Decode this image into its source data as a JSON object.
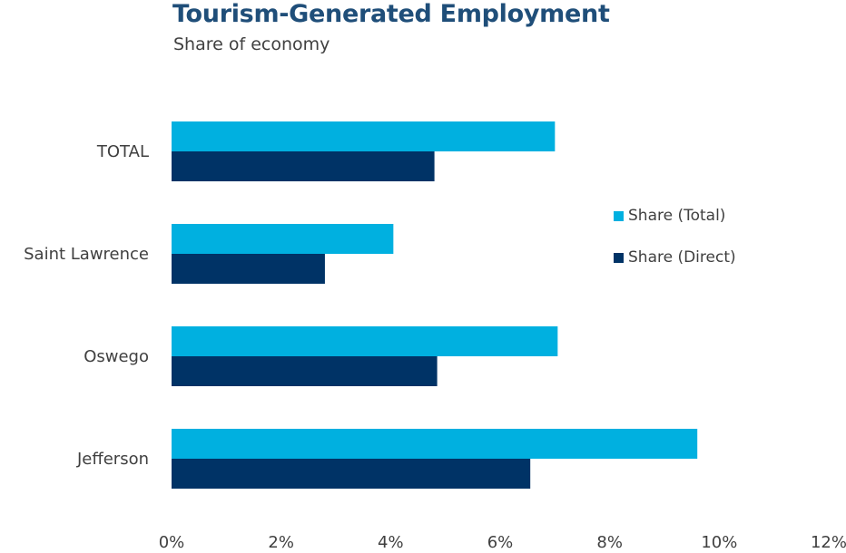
{
  "chart_data": {
    "type": "bar",
    "orientation": "horizontal",
    "title": "Tourism-Generated Employment",
    "subtitle": "Share of economy",
    "categories": [
      "TOTAL",
      "Saint Lawrence",
      "Oswego",
      "Jefferson"
    ],
    "series": [
      {
        "name": "Share (Total)",
        "color": "#00b0e0",
        "values": [
          7.0,
          4.05,
          7.05,
          9.6
        ]
      },
      {
        "name": "Share (Direct)",
        "color": "#003366",
        "values": [
          4.8,
          2.8,
          4.85,
          6.55
        ]
      }
    ],
    "xlim": [
      0,
      12
    ],
    "x_ticks": [
      "0%",
      "2%",
      "4%",
      "6%",
      "8%",
      "10%",
      "12%"
    ],
    "xlabel": "",
    "ylabel": "",
    "grid": false,
    "legend_position": "right"
  }
}
